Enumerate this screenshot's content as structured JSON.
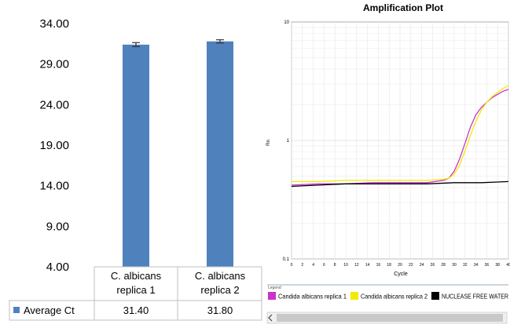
{
  "chart_data": [
    {
      "type": "bar",
      "categories": [
        "C. albicans replica 1",
        "C. albicans replica 2"
      ],
      "category_lines": [
        [
          "C. albicans",
          "replica 1"
        ],
        [
          "C. albicans",
          "replica 2"
        ]
      ],
      "series": [
        {
          "name": "Average Ct",
          "values": [
            31.4,
            31.8
          ],
          "error": [
            0.25,
            0.2
          ]
        }
      ],
      "table_values": [
        "31.40",
        "31.80"
      ],
      "yticks": [
        "34.00",
        "29.00",
        "24.00",
        "19.00",
        "14.00",
        "9.00",
        "4.00"
      ],
      "ylim": [
        4,
        34
      ],
      "bar_color": "#4f81bd",
      "grid": false,
      "legend": "data-table"
    },
    {
      "type": "line",
      "title": "Amplification Plot",
      "xlabel": "Cycle",
      "ylabel": "Rn",
      "yscale": "log",
      "ylim": [
        0.1,
        10
      ],
      "xlim": [
        0,
        40
      ],
      "ytick_labels": [
        "10",
        "1",
        "0.1"
      ],
      "xtick_labels": [
        "0",
        "2",
        "4",
        "6",
        "8",
        "10",
        "12",
        "14",
        "16",
        "18",
        "20",
        "22",
        "24",
        "26",
        "28",
        "30",
        "32",
        "34",
        "36",
        "38",
        "40"
      ],
      "grid": true,
      "legend_title": "Legend",
      "legend": "bottom",
      "series": [
        {
          "name": "Candida albicans replica 1",
          "color": "#cc33cc",
          "x": [
            0,
            5,
            10,
            15,
            20,
            25,
            28,
            29,
            30,
            31,
            32,
            33,
            34,
            35,
            36,
            37,
            38,
            39,
            40
          ],
          "y": [
            0.42,
            0.43,
            0.43,
            0.44,
            0.44,
            0.44,
            0.46,
            0.48,
            0.55,
            0.7,
            0.95,
            1.3,
            1.65,
            1.9,
            2.1,
            2.3,
            2.45,
            2.6,
            2.7
          ]
        },
        {
          "name": "Candida albicans replica 2",
          "color": "#f2ea00",
          "x": [
            0,
            5,
            10,
            15,
            20,
            25,
            28,
            29,
            30,
            31,
            32,
            33,
            34,
            35,
            36,
            37,
            38,
            39,
            40
          ],
          "y": [
            0.45,
            0.45,
            0.46,
            0.46,
            0.46,
            0.46,
            0.47,
            0.48,
            0.52,
            0.62,
            0.82,
            1.1,
            1.45,
            1.8,
            2.1,
            2.35,
            2.55,
            2.75,
            2.9
          ]
        },
        {
          "name": "NUCLEASE FREE WATER",
          "color": "#000000",
          "x": [
            0,
            5,
            10,
            15,
            20,
            25,
            30,
            35,
            40
          ],
          "y": [
            0.41,
            0.42,
            0.43,
            0.43,
            0.43,
            0.43,
            0.44,
            0.44,
            0.45
          ]
        }
      ]
    }
  ]
}
